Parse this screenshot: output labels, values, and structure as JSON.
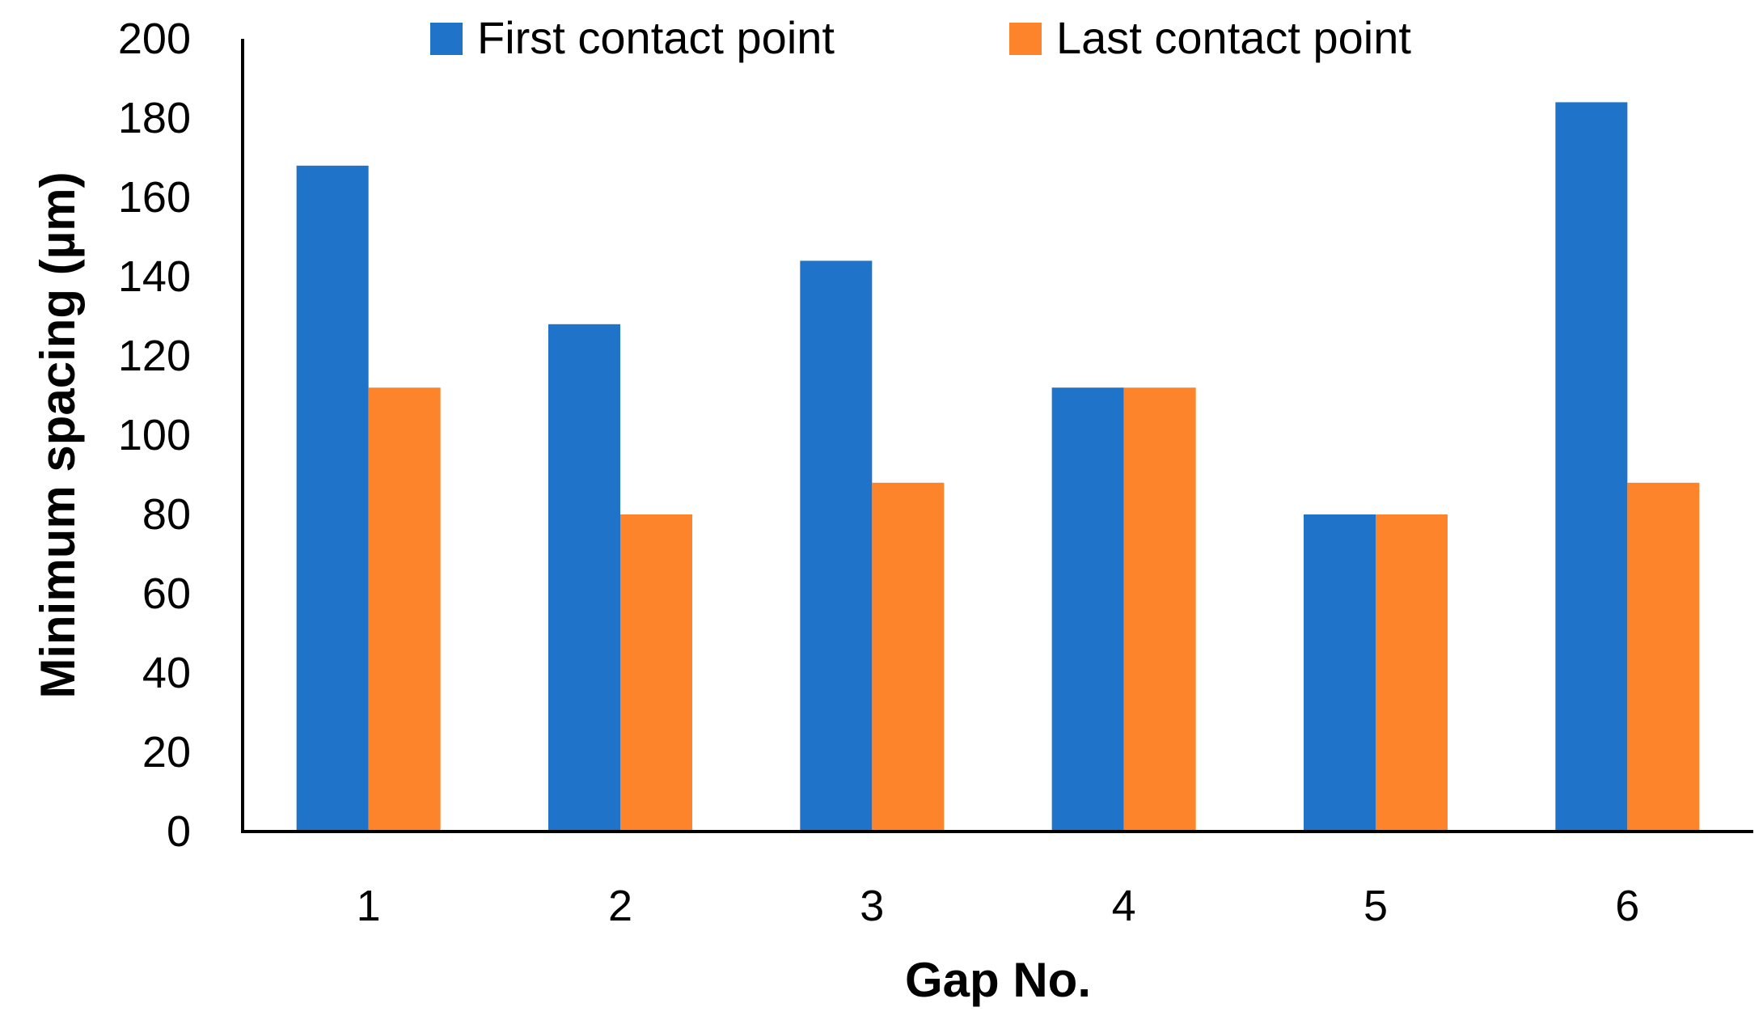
{
  "chart_data": {
    "type": "bar",
    "categories": [
      "1",
      "2",
      "3",
      "4",
      "5",
      "6"
    ],
    "series": [
      {
        "name": "First contact point",
        "values": [
          168,
          128,
          144,
          112,
          80,
          184
        ],
        "color": "#1f73c8"
      },
      {
        "name": "Last contact point",
        "values": [
          112,
          80,
          88,
          112,
          80,
          88
        ],
        "color": "#fd842a"
      }
    ],
    "title": "",
    "xlabel": "Gap No.",
    "ylabel": "Minimum spacing (µm)",
    "ylim": [
      0,
      200
    ],
    "yticks": [
      "0",
      "20",
      "40",
      "60",
      "80",
      "100",
      "120",
      "140",
      "160",
      "180",
      "200"
    ],
    "grid": false,
    "legend_position": "top"
  }
}
